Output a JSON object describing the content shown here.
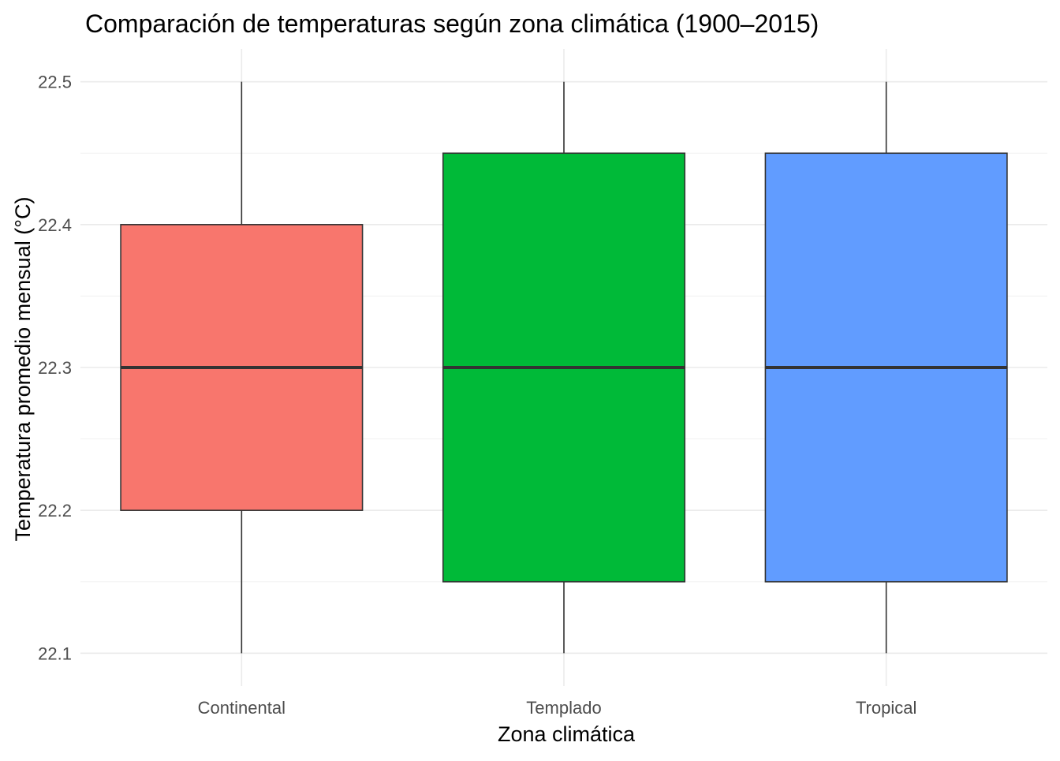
{
  "chart_data": {
    "type": "box",
    "title": "Comparación de temperaturas según zona climática (1900–2015)",
    "xlabel": "Zona climática",
    "ylabel": "Temperatura promedio mensual (°C)",
    "categories": [
      "Continental",
      "Templado",
      "Tropical"
    ],
    "boxes": [
      {
        "category": "Continental",
        "min": 22.1,
        "q1": 22.2,
        "median": 22.3,
        "q3": 22.4,
        "max": 22.5,
        "color": "#F8766D"
      },
      {
        "category": "Templado",
        "min": 22.1,
        "q1": 22.15,
        "median": 22.3,
        "q3": 22.45,
        "max": 22.5,
        "color": "#00BA38"
      },
      {
        "category": "Tropical",
        "min": 22.1,
        "q1": 22.15,
        "median": 22.3,
        "q3": 22.45,
        "max": 22.5,
        "color": "#619CFF"
      }
    ],
    "yticks": [
      "22.1",
      "22.2",
      "22.3",
      "22.4",
      "22.5"
    ],
    "ylim": [
      22.077,
      22.523
    ],
    "grid": true,
    "legend": "none"
  }
}
